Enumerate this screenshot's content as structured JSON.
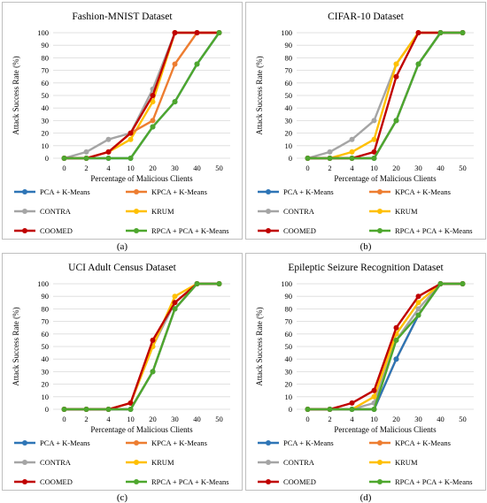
{
  "series_names": [
    "PCA + K-Means",
    "KPCA + K-Means",
    "CONTRA",
    "KRUM",
    "COOMED",
    "RPCA + PCA + K-Means"
  ],
  "series_colors": [
    "#2e75b6",
    "#ed7d31",
    "#a5a5a5",
    "#ffc000",
    "#c00000",
    "#4ea72e"
  ],
  "chart_data": [
    {
      "type": "line",
      "title": "Fashion-MNIST Dataset",
      "xlabel": "Percentage of Malicious Clients",
      "ylabel": "Attack Success Rate (%)",
      "categories": [
        "0",
        "2",
        "4",
        "10",
        "20",
        "30",
        "40",
        "50"
      ],
      "ylim": [
        0,
        100
      ],
      "yticks": [
        0,
        10,
        20,
        30,
        40,
        50,
        60,
        70,
        80,
        90,
        100
      ],
      "legend": "bottom",
      "caption": "(a)",
      "series": [
        {
          "name": "PCA + K-Means",
          "values": [
            0,
            0,
            0,
            0,
            25,
            45,
            75,
            100
          ]
        },
        {
          "name": "KPCA + K-Means",
          "values": [
            0,
            0,
            5,
            20,
            30,
            75,
            100,
            100
          ]
        },
        {
          "name": "CONTRA",
          "values": [
            0,
            5,
            15,
            20,
            55,
            100,
            100,
            100
          ]
        },
        {
          "name": "KRUM",
          "values": [
            0,
            0,
            5,
            15,
            45,
            100,
            100,
            100
          ]
        },
        {
          "name": "COOMED",
          "values": [
            0,
            0,
            5,
            20,
            50,
            100,
            100,
            100
          ]
        },
        {
          "name": "RPCA + PCA + K-Means",
          "values": [
            0,
            0,
            0,
            0,
            25,
            45,
            75,
            100
          ]
        }
      ]
    },
    {
      "type": "line",
      "title": "CIFAR-10 Dataset",
      "xlabel": "Percentage of Malicious Clients",
      "ylabel": "Attack Success Rate (%)",
      "categories": [
        "0",
        "2",
        "4",
        "10",
        "20",
        "30",
        "40",
        "50"
      ],
      "ylim": [
        0,
        100
      ],
      "yticks": [
        0,
        10,
        20,
        30,
        40,
        50,
        60,
        70,
        80,
        90,
        100
      ],
      "legend": "bottom",
      "caption": "(b)",
      "series": [
        {
          "name": "PCA + K-Means",
          "values": [
            0,
            0,
            0,
            0,
            30,
            75,
            100,
            100
          ]
        },
        {
          "name": "KPCA + K-Means",
          "values": [
            0,
            0,
            0,
            0,
            30,
            75,
            100,
            100
          ]
        },
        {
          "name": "CONTRA",
          "values": [
            0,
            5,
            15,
            30,
            75,
            100,
            100,
            100
          ]
        },
        {
          "name": "KRUM",
          "values": [
            0,
            0,
            5,
            15,
            75,
            100,
            100,
            100
          ]
        },
        {
          "name": "COOMED",
          "values": [
            0,
            0,
            0,
            5,
            65,
            100,
            100,
            100
          ]
        },
        {
          "name": "RPCA + PCA + K-Means",
          "values": [
            0,
            0,
            0,
            0,
            30,
            75,
            100,
            100
          ]
        }
      ]
    },
    {
      "type": "line",
      "title": "UCI Adult Census Dataset",
      "xlabel": "Percentage of Malicious Clients",
      "ylabel": "Attack Success Rate (%)",
      "categories": [
        "0",
        "2",
        "4",
        "10",
        "20",
        "30",
        "40",
        "50"
      ],
      "ylim": [
        0,
        100
      ],
      "yticks": [
        0,
        10,
        20,
        30,
        40,
        50,
        60,
        70,
        80,
        90,
        100
      ],
      "legend": "bottom",
      "caption": "(c)",
      "series": [
        {
          "name": "PCA + K-Means",
          "values": [
            0,
            0,
            0,
            0,
            30,
            80,
            100,
            100
          ]
        },
        {
          "name": "KPCA + K-Means",
          "values": [
            0,
            0,
            0,
            0,
            30,
            80,
            100,
            100
          ]
        },
        {
          "name": "CONTRA",
          "values": [
            0,
            0,
            0,
            5,
            50,
            85,
            100,
            100
          ]
        },
        {
          "name": "KRUM",
          "values": [
            0,
            0,
            0,
            5,
            50,
            90,
            100,
            100
          ]
        },
        {
          "name": "COOMED",
          "values": [
            0,
            0,
            0,
            5,
            55,
            85,
            100,
            100
          ]
        },
        {
          "name": "RPCA + PCA + K-Means",
          "values": [
            0,
            0,
            0,
            0,
            30,
            80,
            100,
            100
          ]
        }
      ]
    },
    {
      "type": "line",
      "title": "Epileptic Seizure Recognition Dataset",
      "xlabel": "Percentage of Malicious Clients",
      "ylabel": "Attack Success Rate (%)",
      "categories": [
        "0",
        "2",
        "4",
        "10",
        "20",
        "30",
        "40",
        "50"
      ],
      "ylim": [
        0,
        100
      ],
      "yticks": [
        0,
        10,
        20,
        30,
        40,
        50,
        60,
        70,
        80,
        90,
        100
      ],
      "legend": "bottom",
      "caption": "(d)",
      "series": [
        {
          "name": "PCA + K-Means",
          "values": [
            0,
            0,
            0,
            0,
            40,
            75,
            100,
            100
          ]
        },
        {
          "name": "KPCA + K-Means",
          "values": [
            0,
            0,
            0,
            0,
            40,
            75,
            100,
            100
          ]
        },
        {
          "name": "CONTRA",
          "values": [
            0,
            0,
            0,
            5,
            55,
            80,
            100,
            100
          ]
        },
        {
          "name": "KRUM",
          "values": [
            0,
            0,
            0,
            10,
            60,
            85,
            100,
            100
          ]
        },
        {
          "name": "COOMED",
          "values": [
            0,
            0,
            5,
            15,
            65,
            90,
            100,
            100
          ]
        },
        {
          "name": "RPCA + PCA + K-Means",
          "values": [
            0,
            0,
            0,
            0,
            55,
            75,
            100,
            100
          ]
        }
      ]
    }
  ]
}
